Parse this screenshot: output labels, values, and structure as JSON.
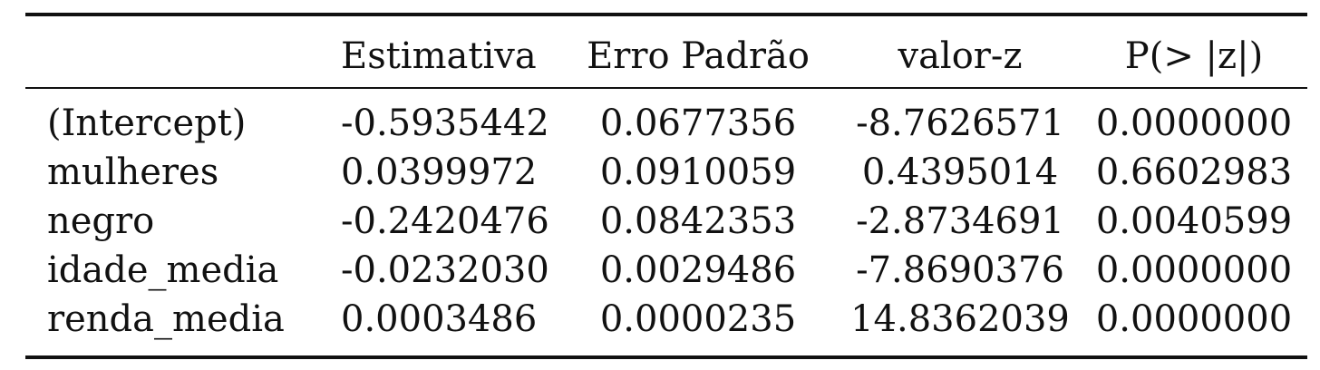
{
  "table": {
    "headers": [
      "",
      "Estimativa",
      "Erro Padrão",
      "valor-z",
      "P(> |z|)"
    ],
    "rows": [
      {
        "term": "(Intercept)",
        "estimativa": "-0.5935442",
        "erro_padrao": "0.0677356",
        "valor_z": "-8.7626571",
        "p": "0.0000000"
      },
      {
        "term": "mulheres",
        "estimativa": "0.0399972",
        "erro_padrao": "0.0910059",
        "valor_z": "0.4395014",
        "p": "0.6602983"
      },
      {
        "term": "negro",
        "estimativa": "-0.2420476",
        "erro_padrao": "0.0842353",
        "valor_z": "-2.8734691",
        "p": "0.0040599"
      },
      {
        "term": "idade_media",
        "estimativa": "-0.0232030",
        "erro_padrao": "0.0029486",
        "valor_z": "-7.8690376",
        "p": "0.0000000"
      },
      {
        "term": "renda_media",
        "estimativa": "0.0003486",
        "erro_padrao": "0.0000235",
        "valor_z": "14.8362039",
        "p": "0.0000000"
      }
    ]
  }
}
